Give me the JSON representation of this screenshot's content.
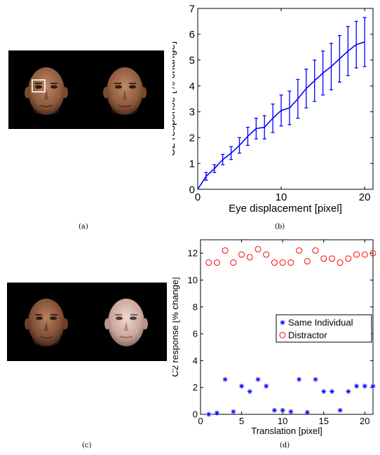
{
  "captions": {
    "a": "(a)",
    "b": "(b)",
    "c": "(c)",
    "d": "(d)"
  },
  "chart_data": [
    {
      "id": "b",
      "type": "line",
      "title": "",
      "xlabel": "Eye displacement [pixel]",
      "ylabel": "C2 response [% change]",
      "xlim": [
        0,
        21
      ],
      "ylim": [
        0,
        7
      ],
      "xticks": [
        0,
        10,
        20
      ],
      "yticks": [
        0,
        1,
        2,
        3,
        4,
        5,
        6,
        7
      ],
      "grid": false,
      "color": "#0000ff",
      "series": [
        {
          "x": [
            0,
            1,
            2,
            3,
            4,
            5,
            6,
            7,
            8,
            9,
            10,
            11,
            12,
            13,
            14,
            15,
            16,
            17,
            18,
            19,
            20
          ],
          "y": [
            0,
            0.5,
            0.8,
            1.15,
            1.4,
            1.7,
            2.05,
            2.35,
            2.4,
            2.75,
            3.05,
            3.15,
            3.5,
            3.9,
            4.2,
            4.5,
            4.75,
            5.05,
            5.35,
            5.6,
            5.7
          ],
          "err": [
            0,
            0.15,
            0.15,
            0.2,
            0.25,
            0.3,
            0.35,
            0.4,
            0.45,
            0.55,
            0.6,
            0.65,
            0.75,
            0.75,
            0.8,
            0.85,
            0.9,
            0.9,
            0.95,
            0.9,
            0.95
          ]
        }
      ]
    },
    {
      "id": "d",
      "type": "scatter",
      "title": "",
      "xlabel": "Translation [pixel]",
      "ylabel": "C2 response [% change]",
      "xlim": [
        0,
        21
      ],
      "ylim": [
        0,
        13
      ],
      "xticks": [
        0,
        5,
        10,
        15,
        20
      ],
      "yticks": [
        0,
        2,
        4,
        6,
        8,
        10,
        12
      ],
      "grid": false,
      "legend_position": "center-right",
      "series": [
        {
          "name": "Same Individual",
          "marker": "star",
          "color": "#0000ff",
          "x": [
            1,
            2,
            3,
            4,
            5,
            6,
            7,
            8,
            9,
            10,
            11,
            12,
            13,
            14,
            15,
            16,
            17,
            18,
            19,
            20,
            21
          ],
          "y": [
            0,
            0.1,
            2.6,
            0.2,
            2.1,
            1.7,
            2.6,
            2.1,
            0.3,
            0.3,
            0.2,
            2.6,
            0.15,
            2.6,
            1.7,
            1.7,
            0.3,
            1.7,
            2.1,
            2.1,
            2.1
          ]
        },
        {
          "name": "Distractor",
          "marker": "circle",
          "color": "#ff0000",
          "x": [
            1,
            2,
            3,
            4,
            5,
            6,
            7,
            8,
            9,
            10,
            11,
            12,
            13,
            14,
            15,
            16,
            17,
            18,
            19,
            20,
            21
          ],
          "y": [
            11.3,
            11.3,
            12.2,
            11.3,
            11.9,
            11.7,
            12.3,
            11.9,
            11.3,
            11.3,
            11.3,
            12.2,
            11.4,
            12.2,
            11.6,
            11.6,
            11.3,
            11.6,
            11.9,
            11.9,
            12
          ]
        }
      ]
    }
  ]
}
